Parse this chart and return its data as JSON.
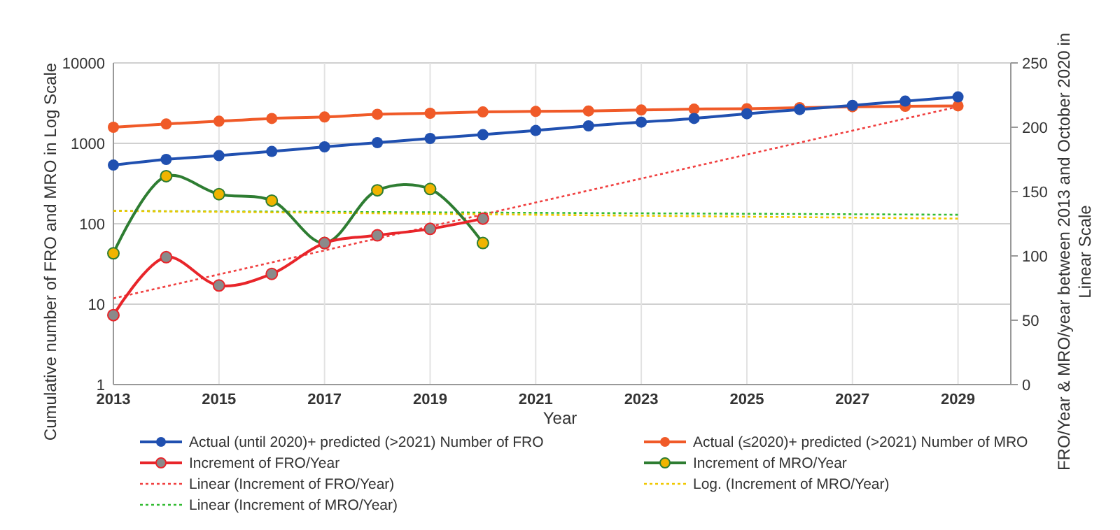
{
  "chart_data": {
    "type": "line",
    "xlabel": "Year",
    "ylabel": "Cumulative number of FRO and  MRO in Log Scale",
    "y2label": "FRO/Year & MRO/year between 2013 and October 2020 in Linear Scale",
    "x": [
      2013,
      2014,
      2015,
      2016,
      2017,
      2018,
      2019,
      2020,
      2021,
      2022,
      2023,
      2024,
      2025,
      2026,
      2027,
      2028,
      2029
    ],
    "xlim": [
      2013,
      2030
    ],
    "xticks": [
      2013,
      2015,
      2017,
      2019,
      2021,
      2023,
      2025,
      2027,
      2029
    ],
    "ylim": [
      1,
      10000
    ],
    "yticks": [
      1,
      10,
      100,
      1000,
      10000
    ],
    "log": "y",
    "y2lim": [
      0,
      250
    ],
    "y2ticks": [
      0,
      50,
      100,
      150,
      200,
      250
    ],
    "grid": true,
    "legend": "bottom",
    "marker": "circle",
    "line_style": "solid",
    "series": [
      {
        "name": "Actual (until 2020)+ predicted (>2021)  Number of FRO",
        "color": "#2050b0",
        "values": [
          537,
          631,
          703,
          793,
          905,
          1020,
          1150,
          1282,
          1445,
          1650,
          1836,
          2040,
          2335,
          2630,
          2970,
          3350,
          3780
        ]
      },
      {
        "name": "Actual (≤2020)+ predicted (>2021) Number of MRO",
        "color": "#f05a28",
        "values": [
          1585,
          1740,
          1885,
          2040,
          2125,
          2300,
          2365,
          2460,
          2495,
          2530,
          2595,
          2665,
          2700,
          2775,
          2850,
          2890,
          2925
        ]
      },
      {
        "name": "Increment of FRO/Year",
        "color": "#e8252a",
        "colors": [
          "#8a8a8a",
          "#8a8a8a",
          "#8a8a8a",
          "#8a8a8a",
          "#8a8a8a",
          "#8a8a8a",
          "#8a8a8a",
          "#8a8a8a"
        ],
        "axis": "y2",
        "x": [
          2013,
          2014,
          2015,
          2016,
          2017,
          2018,
          2019,
          2020
        ],
        "values": [
          54,
          99,
          77,
          86,
          110,
          116,
          121,
          129
        ]
      },
      {
        "name": "Increment of MRO/Year",
        "color": "#2e7d32",
        "colors": [
          "#f0b400",
          "#f0b400",
          "#f0b400",
          "#f0b400",
          "#f0b400",
          "#f0b400",
          "#f0b400",
          "#f0b400"
        ],
        "axis": "y2",
        "x": [
          2013,
          2014,
          2015,
          2016,
          2017,
          2018,
          2019,
          2020
        ],
        "values": [
          102,
          162,
          148,
          143,
          110,
          151,
          152,
          110
        ]
      },
      {
        "name": "Linear (Increment of FRO/Year)",
        "color": "#f04040",
        "axis": "y2",
        "marker": "none",
        "line_style": "dotted",
        "x": [
          2013,
          2029
        ],
        "values": [
          67,
          216
        ]
      },
      {
        "name": "Log. (Increment of MRO/Year)",
        "color": "#f0c800",
        "axis": "y2",
        "marker": "none",
        "line_style": "dotted",
        "x": [
          2013,
          2029
        ],
        "values": [
          135,
          129
        ]
      },
      {
        "name": "Linear (Increment of MRO/Year)",
        "color": "#33bb33",
        "axis": "y2",
        "marker": "none",
        "line_style": "dotted",
        "x": [
          2013,
          2029
        ],
        "values": [
          135,
          132
        ]
      }
    ]
  }
}
